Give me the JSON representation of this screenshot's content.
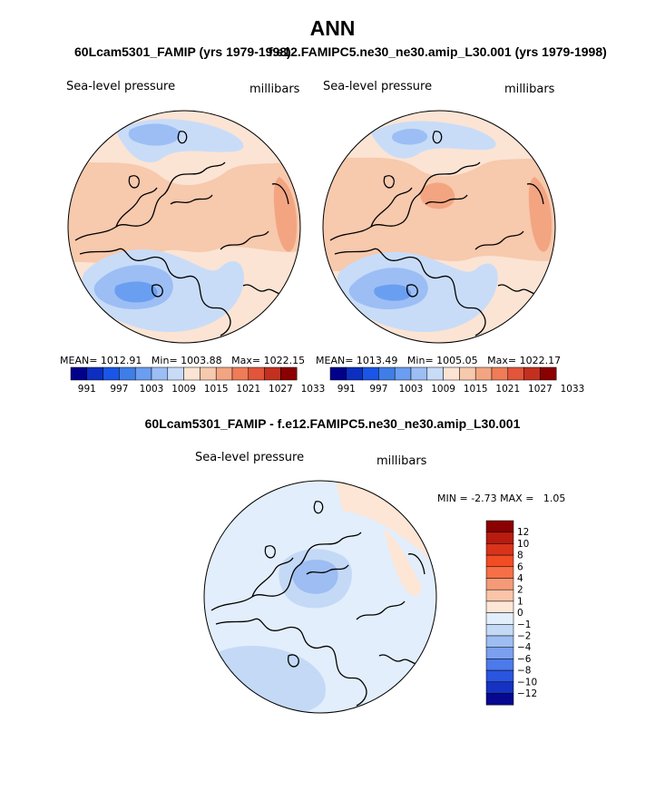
{
  "title": "ANN",
  "panels": [
    {
      "case": "60Lcam5301_FAMIP (yrs 1979-1998)",
      "variable": "Sea-level pressure",
      "units": "millibars",
      "mean_label": "MEAN=",
      "mean": "1012.91",
      "min_label": "Min=",
      "min": "1003.88",
      "max_label": "Max=",
      "max": "1022.15"
    },
    {
      "case": "f.e12.FAMIPC5.ne30_ne30.amip_L30.001 (yrs 1979-1998)",
      "variable": "Sea-level pressure",
      "units": "millibars",
      "mean_label": "MEAN=",
      "mean": "1013.49",
      "min_label": "Min=",
      "min": "1005.05",
      "max_label": "Max=",
      "max": "1022.17"
    }
  ],
  "abs_colorbar": {
    "colors": [
      "#00008b",
      "#0d2fc0",
      "#1a55e6",
      "#3f7ee6",
      "#6a9ef0",
      "#9cbef5",
      "#c8dcf8",
      "#fbe4d4",
      "#f7c9ad",
      "#f3a582",
      "#ef7c57",
      "#e2553a",
      "#c4301f",
      "#8b0000"
    ],
    "tick_labels": [
      "991",
      "997",
      "1003",
      "1009",
      "1015",
      "1021",
      "1027",
      "1033"
    ]
  },
  "difference": {
    "title": "60Lcam5301_FAMIP - f.e12.FAMIPC5.ne30_ne30.amip_L30.001",
    "variable": "Sea-level pressure",
    "units": "millibars",
    "min_label": "MIN =",
    "min": "-2.73",
    "max_label": "MAX =",
    "max": "1.05"
  },
  "diff_colorbar": {
    "colors": [
      "#8b0000",
      "#b71c0e",
      "#d9331c",
      "#f24c25",
      "#f66f46",
      "#f59a78",
      "#fbc4a8",
      "#fde6d6",
      "#e2eefb",
      "#c3d9f6",
      "#9dbdf3",
      "#7aa0ef",
      "#4d7aeb",
      "#2a55e0",
      "#1632c2",
      "#06088f"
    ],
    "labels": [
      "12",
      "10",
      "8",
      "6",
      "4",
      "2",
      "1",
      "0",
      "−1",
      "−2",
      "−4",
      "−6",
      "−8",
      "−10",
      "−12"
    ]
  }
}
